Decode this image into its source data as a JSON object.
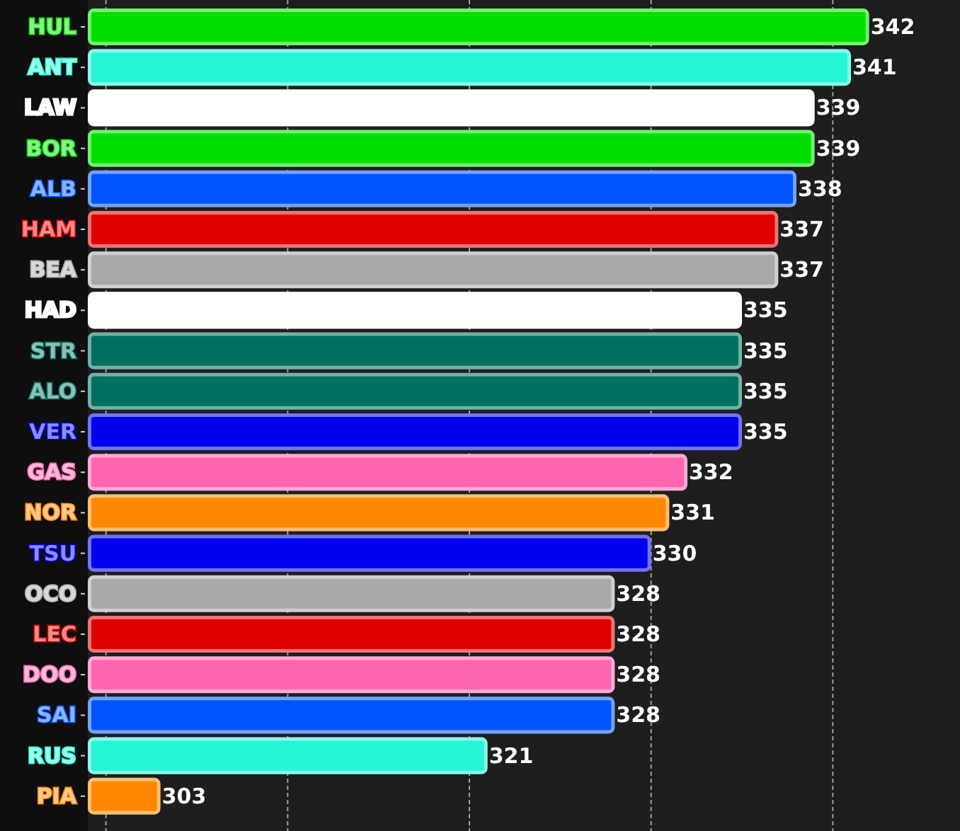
{
  "chart_data": {
    "type": "bar",
    "orientation": "horizontal",
    "categories": [
      "HUL",
      "ANT",
      "LAW",
      "BOR",
      "ALB",
      "HAM",
      "BEA",
      "HAD",
      "STR",
      "ALO",
      "VER",
      "GAS",
      "NOR",
      "TSU",
      "OCO",
      "LEC",
      "DOO",
      "SAI",
      "RUS",
      "PIA"
    ],
    "values": [
      342,
      341,
      339,
      339,
      338,
      337,
      337,
      335,
      335,
      335,
      335,
      332,
      331,
      330,
      328,
      328,
      328,
      328,
      321,
      303
    ],
    "colors": [
      "#00e000",
      "#27f5d5",
      "#ffffff",
      "#00e000",
      "#0055ff",
      "#e00000",
      "#a8a8a8",
      "#ffffff",
      "#007060",
      "#007060",
      "#0000ee",
      "#ff66b2",
      "#ff8800",
      "#0000ee",
      "#a8a8a8",
      "#e00000",
      "#ff66b2",
      "#0055ff",
      "#27f5d5",
      "#ff8800"
    ],
    "xlim": [
      299,
      347
    ],
    "xticks": [
      {
        "value": 300,
        "label": null
      },
      {
        "value": 310,
        "label": null
      },
      {
        "value": 320,
        "label": null
      },
      {
        "value": 330,
        "label": null
      },
      {
        "value": 340,
        "label": null
      }
    ],
    "tick_labels": "y",
    "grid": "x",
    "data_labels": true
  }
}
